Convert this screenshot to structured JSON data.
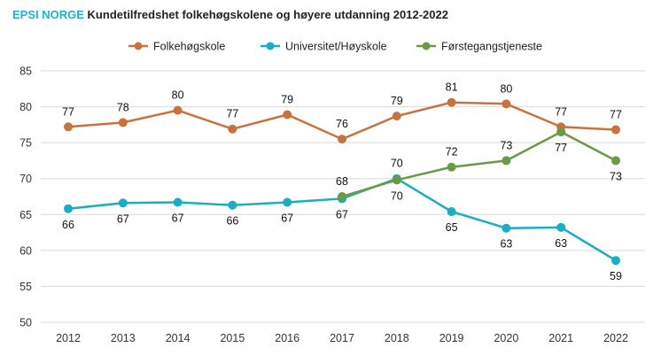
{
  "brand": "EPSI NORGE",
  "chart_data": {
    "type": "line",
    "title": "Kundetilfredshet folkehøgskolene og høyere utdanning 2012-2022",
    "xlabel": "",
    "ylabel": "",
    "ylim": [
      50,
      85
    ],
    "yticks": [
      50,
      55,
      60,
      65,
      70,
      75,
      80,
      85
    ],
    "grid": true,
    "legend": "top",
    "categories": [
      "2012",
      "2013",
      "2014",
      "2015",
      "2016",
      "2017",
      "2018",
      "2019",
      "2020",
      "2021",
      "2022"
    ],
    "series": [
      {
        "name": "Folkehøgskole",
        "color": "#c8733d",
        "values": [
          77.2,
          77.8,
          79.5,
          76.9,
          78.9,
          75.5,
          78.7,
          80.6,
          80.4,
          77.2,
          76.8
        ],
        "labels": [
          "77",
          "78",
          "80",
          "77",
          "79",
          "76",
          "79",
          "81",
          "80",
          "77",
          "77"
        ]
      },
      {
        "name": "Universitet/Høyskole",
        "color": "#1aadc3",
        "values": [
          65.8,
          66.6,
          66.7,
          66.3,
          66.7,
          67.2,
          70.0,
          65.4,
          63.1,
          63.2,
          58.6
        ],
        "labels": [
          "66",
          "67",
          "67",
          "66",
          "67",
          "67",
          "70",
          "65",
          "63",
          "63",
          "59"
        ]
      },
      {
        "name": "Førstegangstjeneste",
        "color": "#6a9a46",
        "values": [
          null,
          null,
          null,
          null,
          null,
          67.5,
          69.8,
          71.6,
          72.5,
          76.5,
          72.5
        ],
        "labels": [
          null,
          null,
          null,
          null,
          null,
          "68",
          "70",
          "72",
          "73",
          "77",
          "73"
        ]
      }
    ]
  }
}
